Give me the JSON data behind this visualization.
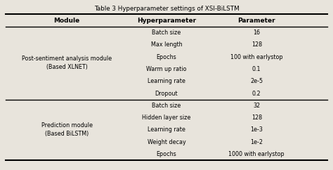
{
  "title": "Table 3 Hyperparameter settings of XSI-BiLSTM",
  "col_headers": [
    "Module",
    "Hyperparameter",
    "Parameter"
  ],
  "section1_module": "Post-sentiment analysis module\n(Based XLNET)",
  "section1_rows": [
    [
      "Batch size",
      "16"
    ],
    [
      "Max length",
      "128"
    ],
    [
      "Epochs",
      "100 with earlystop"
    ],
    [
      "Warm up ratio",
      "0.1"
    ],
    [
      "Learning rate",
      "2e-5"
    ],
    [
      "Dropout",
      "0.2"
    ]
  ],
  "section2_module": "Prediction module\n(Based BiLSTM)",
  "section2_rows": [
    [
      "Batch size",
      "32"
    ],
    [
      "Hidden layer size",
      "128"
    ],
    [
      "Learning rate",
      "1e-3"
    ],
    [
      "Weight decay",
      "1e-2"
    ],
    [
      "Epochs",
      "1000 with earlystop"
    ]
  ],
  "bg_color": "#e8e4dc",
  "header_fontsize": 6.5,
  "body_fontsize": 5.8,
  "title_fontsize": 6.3
}
